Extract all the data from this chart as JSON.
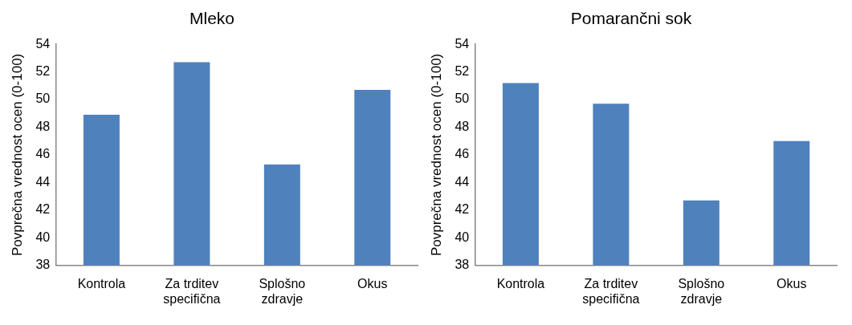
{
  "chart_data": [
    {
      "type": "bar",
      "title": "Mleko",
      "ylabel": "Povprečna vrednost ocen (0-100)",
      "categories": [
        "Kontrola",
        "Za trditev specifična",
        "Splošno zdravje",
        "Okus"
      ],
      "values": [
        48.9,
        52.7,
        45.3,
        50.7
      ],
      "color": "#4f81bd",
      "ylim": [
        38,
        54
      ],
      "yticks": [
        38,
        40,
        42,
        44,
        46,
        48,
        50,
        52,
        54
      ],
      "grid": false
    },
    {
      "type": "bar",
      "title": "Pomarančni sok",
      "ylabel": "Povprečna vrednost ocen (0-100)",
      "categories": [
        "Kontrola",
        "Za trditev specifična",
        "Splošno zdravje",
        "Okus"
      ],
      "values": [
        51.2,
        49.7,
        42.7,
        47.0
      ],
      "color": "#4f81bd",
      "ylim": [
        38,
        54
      ],
      "yticks": [
        38,
        40,
        42,
        44,
        46,
        48,
        50,
        52,
        54
      ],
      "grid": false
    }
  ]
}
